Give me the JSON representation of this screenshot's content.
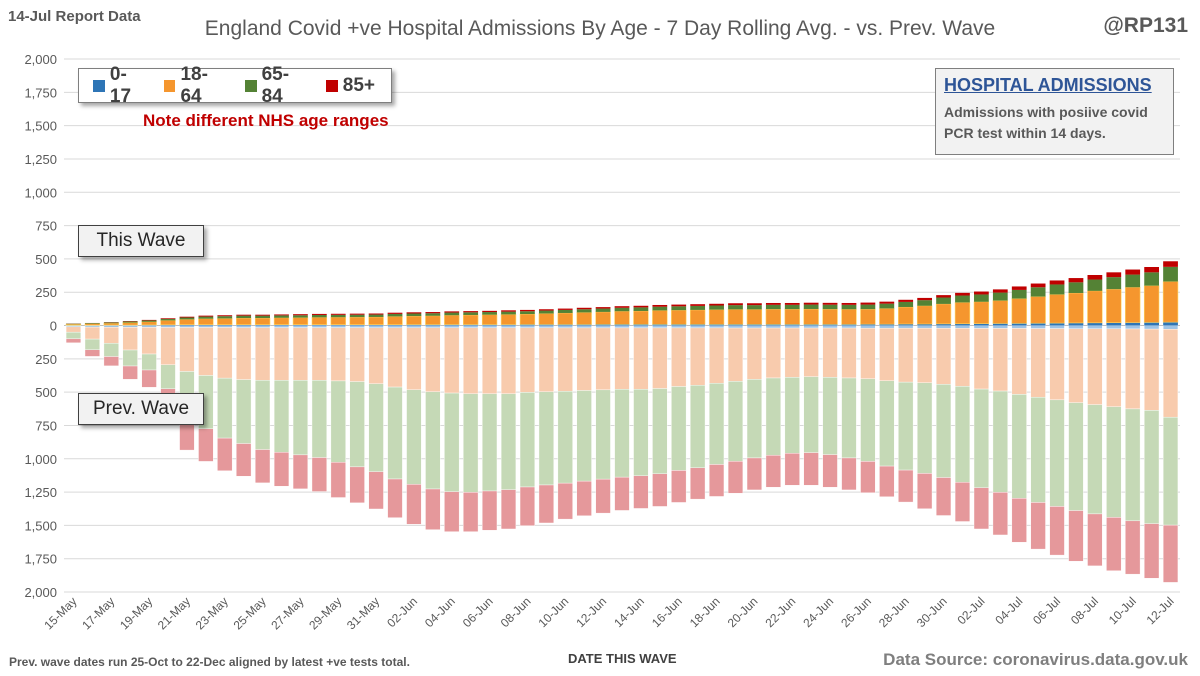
{
  "header": {
    "report_date": "14-Jul Report Data",
    "title": "England Covid +ve Hospital Admissions By Age - 7 Day Rolling Avg. - vs. Prev.  Wave",
    "handle": "@RP131"
  },
  "note": "Note different NHS  age ranges",
  "info_box": {
    "title": "HOSPITAL ADMISSIONS",
    "line1": "Admissions with posiive covid",
    "line2": "PCR test within 14 days."
  },
  "wave_labels": {
    "this_wave": "This Wave",
    "prev_wave": "Prev. Wave"
  },
  "footer": {
    "note": "Prev. wave dates run 25-Oct to 22-Dec aligned by latest +ve tests total.",
    "xlabel": "DATE THIS WAVE",
    "source": "Data Source: coronavirus.data.gov.uk"
  },
  "chart_data": {
    "type": "bar",
    "stacked": true,
    "title": "England Covid +ve Hospital Admissions By Age - 7 Day Rolling Avg. - vs. Prev.  Wave",
    "xlabel": "DATE THIS WAVE",
    "ylabel": "",
    "ylim": [
      -2000,
      2000
    ],
    "y_ticks": [
      2000,
      1750,
      1500,
      1250,
      1000,
      750,
      500,
      250,
      0,
      250,
      500,
      750,
      1000,
      1250,
      1500,
      1750,
      2000
    ],
    "grid": true,
    "legend_position": "top-left",
    "x_tick_labels": [
      "15-May",
      "17-May",
      "19-May",
      "21-May",
      "23-May",
      "25-May",
      "27-May",
      "29-May",
      "31-May",
      "02-Jun",
      "04-Jun",
      "06-Jun",
      "08-Jun",
      "10-Jun",
      "12-Jun",
      "14-Jun",
      "16-Jun",
      "18-Jun",
      "20-Jun",
      "22-Jun",
      "24-Jun",
      "26-Jun",
      "28-Jun",
      "30-Jun",
      "02-Jul",
      "04-Jul",
      "06-Jul",
      "08-Jul",
      "10-Jul",
      "12-Jul"
    ],
    "categories": [
      "15-May",
      "16-May",
      "17-May",
      "18-May",
      "19-May",
      "20-May",
      "21-May",
      "22-May",
      "23-May",
      "24-May",
      "25-May",
      "26-May",
      "27-May",
      "28-May",
      "29-May",
      "30-May",
      "31-May",
      "01-Jun",
      "02-Jun",
      "03-Jun",
      "04-Jun",
      "05-Jun",
      "06-Jun",
      "07-Jun",
      "08-Jun",
      "09-Jun",
      "10-Jun",
      "11-Jun",
      "12-Jun",
      "13-Jun",
      "14-Jun",
      "15-Jun",
      "16-Jun",
      "17-Jun",
      "18-Jun",
      "19-Jun",
      "20-Jun",
      "21-Jun",
      "22-Jun",
      "23-Jun",
      "24-Jun",
      "25-Jun",
      "26-Jun",
      "27-Jun",
      "28-Jun",
      "29-Jun",
      "30-Jun",
      "01-Jul",
      "02-Jul",
      "03-Jul",
      "04-Jul",
      "05-Jul",
      "06-Jul",
      "07-Jul",
      "08-Jul",
      "09-Jul",
      "10-Jul",
      "11-Jul",
      "12-Jul"
    ],
    "this_wave_series": [
      {
        "name": "0-17",
        "color": "#2e75b6",
        "values": [
          2,
          2,
          3,
          3,
          4,
          5,
          6,
          6,
          6,
          6,
          6,
          6,
          6,
          6,
          6,
          6,
          6,
          6,
          7,
          7,
          7,
          7,
          7,
          7,
          8,
          8,
          8,
          8,
          9,
          9,
          9,
          9,
          9,
          9,
          9,
          9,
          9,
          9,
          9,
          9,
          9,
          9,
          10,
          10,
          11,
          11,
          12,
          13,
          14,
          15,
          16,
          17,
          18,
          19,
          20,
          21,
          22,
          23,
          25
        ]
      },
      {
        "name": "18-64",
        "color": "#f5962e",
        "values": [
          8,
          11,
          14,
          19,
          24,
          33,
          40,
          45,
          47,
          50,
          50,
          52,
          53,
          55,
          56,
          57,
          58,
          62,
          64,
          66,
          70,
          72,
          74,
          76,
          78,
          82,
          86,
          90,
          93,
          98,
          100,
          104,
          106,
          108,
          110,
          112,
          112,
          114,
          114,
          115,
          114,
          113,
          113,
          118,
          128,
          137,
          150,
          160,
          164,
          172,
          186,
          200,
          215,
          225,
          240,
          252,
          265,
          276,
          305
        ]
      },
      {
        "name": "65-84",
        "color": "#548235",
        "values": [
          4,
          5,
          6,
          8,
          10,
          12,
          14,
          16,
          17,
          18,
          18,
          18,
          18,
          18,
          18,
          18,
          18,
          19,
          19,
          19,
          20,
          20,
          20,
          21,
          21,
          22,
          23,
          24,
          25,
          26,
          27,
          28,
          29,
          30,
          31,
          32,
          32,
          32,
          32,
          33,
          33,
          33,
          34,
          36,
          38,
          42,
          48,
          52,
          55,
          60,
          65,
          70,
          75,
          80,
          85,
          90,
          95,
          100,
          110
        ]
      },
      {
        "name": "85+",
        "color": "#c00000",
        "values": [
          1,
          1,
          2,
          3,
          4,
          5,
          6,
          7,
          7,
          7,
          7,
          7,
          8,
          8,
          8,
          8,
          8,
          9,
          9,
          9,
          9,
          9,
          9,
          10,
          10,
          10,
          10,
          11,
          11,
          12,
          12,
          13,
          13,
          13,
          13,
          14,
          14,
          14,
          14,
          14,
          14,
          14,
          15,
          15,
          16,
          17,
          18,
          20,
          22,
          24,
          26,
          28,
          30,
          32,
          34,
          36,
          38,
          40,
          42
        ]
      }
    ],
    "prev_wave_series": [
      {
        "name": "0-17",
        "color": "#9dc3e6",
        "values": [
          10,
          12,
          13,
          14,
          14,
          15,
          15,
          15,
          15,
          16,
          16,
          16,
          16,
          16,
          16,
          16,
          17,
          17,
          17,
          17,
          17,
          17,
          17,
          17,
          17,
          17,
          18,
          18,
          18,
          18,
          18,
          18,
          18,
          18,
          18,
          19,
          19,
          19,
          19,
          19,
          19,
          19,
          20,
          20,
          20,
          20,
          21,
          21,
          22,
          22,
          22,
          23,
          23,
          24,
          24,
          25,
          26,
          27,
          28
        ]
      },
      {
        "name": "18-64",
        "color": "#f8cbad",
        "values": [
          40,
          90,
          120,
          170,
          200,
          280,
          330,
          360,
          380,
          390,
          395,
          395,
          395,
          395,
          400,
          405,
          420,
          445,
          465,
          480,
          490,
          495,
          495,
          495,
          485,
          480,
          475,
          470,
          465,
          460,
          460,
          455,
          440,
          430,
          415,
          400,
          385,
          375,
          370,
          365,
          370,
          375,
          380,
          395,
          405,
          410,
          420,
          435,
          455,
          470,
          495,
          515,
          535,
          555,
          570,
          585,
          600,
          610,
          660
        ]
      },
      {
        "name": "65-84",
        "color": "#c5d9b6",
        "values": [
          50,
          80,
          100,
          120,
          120,
          180,
          350,
          400,
          450,
          480,
          520,
          540,
          560,
          580,
          610,
          640,
          660,
          690,
          710,
          730,
          740,
          740,
          730,
          720,
          710,
          700,
          690,
          680,
          670,
          660,
          650,
          640,
          630,
          620,
          610,
          600,
          590,
          580,
          570,
          570,
          580,
          600,
          620,
          640,
          660,
          680,
          700,
          720,
          740,
          760,
          780,
          790,
          800,
          810,
          820,
          830,
          840,
          850,
          810
        ]
      },
      {
        "name": "85+",
        "color": "#e5989b",
        "values": [
          30,
          50,
          70,
          100,
          130,
          150,
          240,
          245,
          245,
          245,
          250,
          255,
          255,
          255,
          265,
          270,
          280,
          290,
          300,
          305,
          300,
          295,
          295,
          295,
          290,
          285,
          270,
          260,
          255,
          250,
          245,
          245,
          240,
          235,
          240,
          240,
          240,
          240,
          240,
          245,
          245,
          240,
          235,
          230,
          240,
          265,
          285,
          295,
          310,
          320,
          330,
          350,
          365,
          380,
          390,
          400,
          400,
          410,
          430
        ]
      }
    ]
  }
}
